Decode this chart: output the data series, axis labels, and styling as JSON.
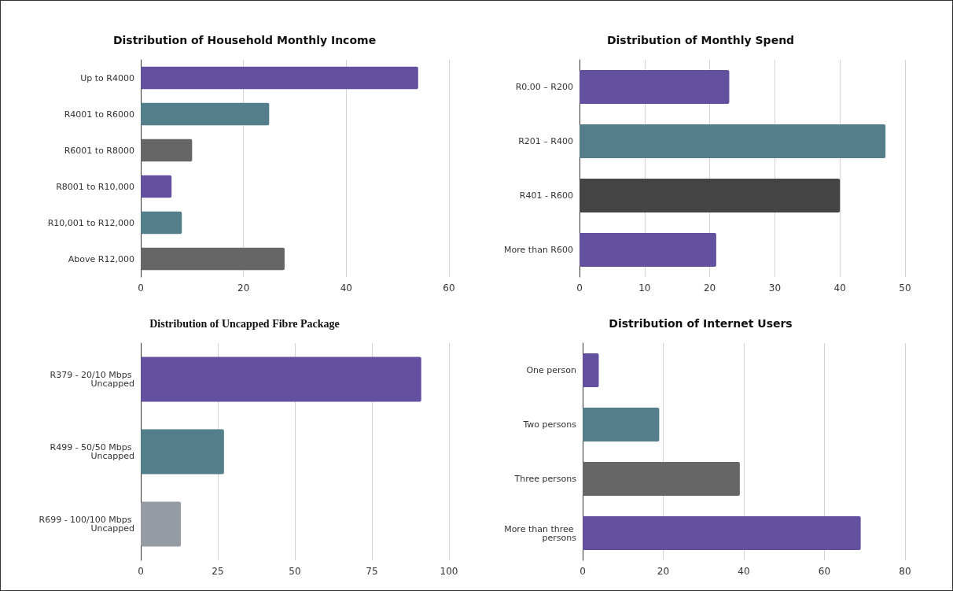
{
  "chart_data": [
    {
      "type": "bar",
      "orientation": "horizontal",
      "title": "Distribution of Household Monthly Income",
      "categories": [
        "Up to R4000",
        "R4001 to R6000",
        "R6001 to R8000",
        "R8001 to R10,000",
        "R10,001 to R12,000",
        "Above R12,000"
      ],
      "values": [
        54,
        25,
        10,
        6,
        8,
        28
      ],
      "colors": [
        "#6351a0",
        "#537e8a",
        "#666666",
        "#6351a0",
        "#537e8a",
        "#666666"
      ],
      "xlim": [
        0,
        60
      ],
      "xticks": [
        0,
        20,
        40,
        60
      ],
      "grid": "x"
    },
    {
      "type": "bar",
      "orientation": "horizontal",
      "title": "Distribution of Monthly Spend",
      "categories": [
        "R0.00 – R200",
        "R201 – R400",
        "R401 - R600",
        "More than R600"
      ],
      "values": [
        23,
        47,
        40,
        21
      ],
      "colors": [
        "#6351a0",
        "#537e8a",
        "#444444",
        "#6351a0"
      ],
      "xlim": [
        0,
        50
      ],
      "xticks": [
        0,
        10,
        20,
        30,
        40,
        50
      ],
      "grid": "x"
    },
    {
      "type": "bar",
      "orientation": "horizontal",
      "title": "Distribution of Uncapped Fibre Package",
      "categories": [
        "R379 - 20/10 Mbps Uncapped",
        "R499 - 50/50 Mbps Uncapped",
        "R699 - 100/100 Mbps Uncapped"
      ],
      "values": [
        91,
        27,
        13
      ],
      "colors": [
        "#6351a0",
        "#537e8a",
        "#969ca3"
      ],
      "xlim": [
        0,
        100
      ],
      "xticks": [
        0,
        25,
        50,
        75,
        100
      ],
      "grid": "x"
    },
    {
      "type": "bar",
      "orientation": "horizontal",
      "title": "Distribution of Internet Users",
      "categories": [
        "One person",
        "Two persons",
        "Three persons",
        "More than three persons"
      ],
      "values": [
        4,
        19,
        39,
        69
      ],
      "colors": [
        "#6351a0",
        "#537e8a",
        "#666666",
        "#6351a0"
      ],
      "xlim": [
        0,
        80
      ],
      "xticks": [
        0,
        20,
        40,
        60,
        80
      ],
      "grid": "x"
    }
  ]
}
